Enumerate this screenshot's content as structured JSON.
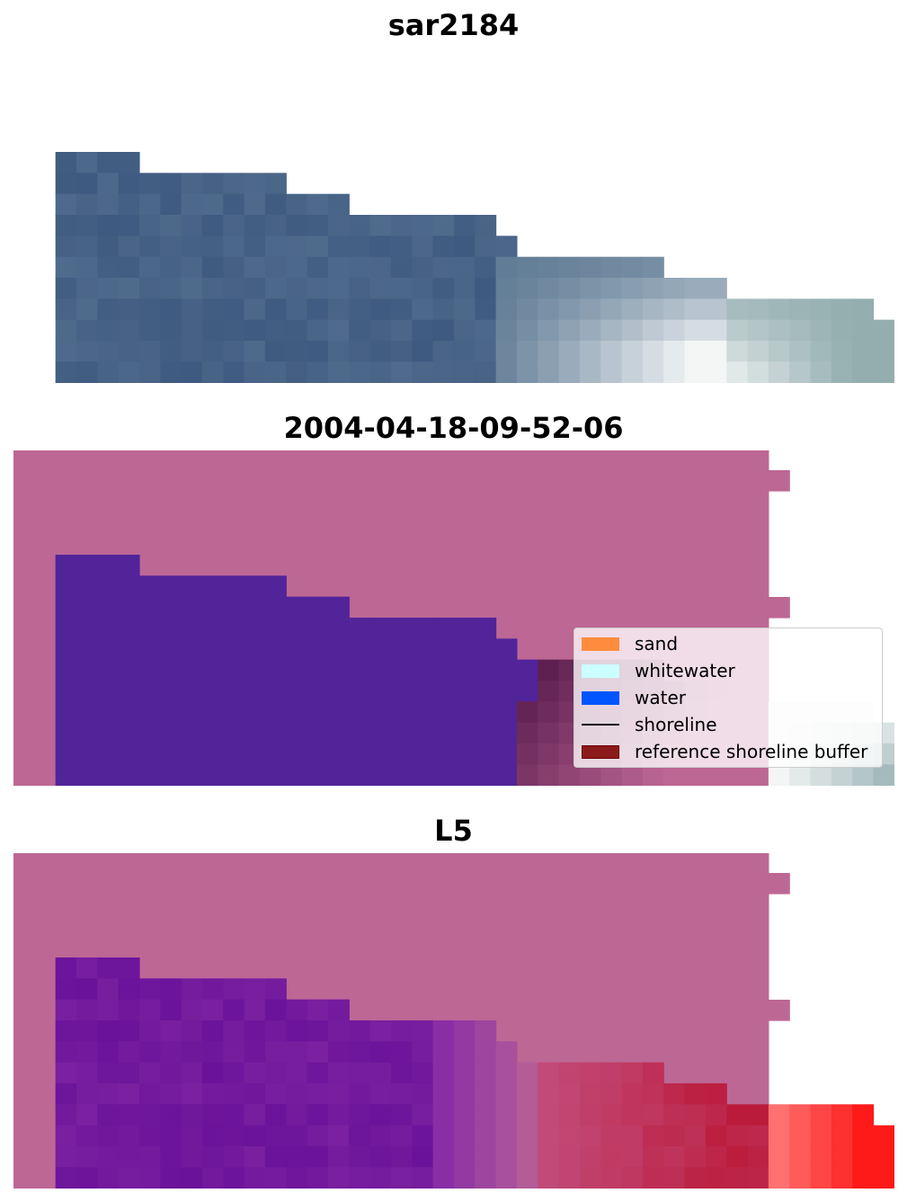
{
  "panels": [
    {
      "title": "sar2184",
      "kind": "rgb_image"
    },
    {
      "title": "2004-04-18-09-52-06",
      "kind": "classified_overlay"
    },
    {
      "title": "L5",
      "kind": "probability_map"
    }
  ],
  "legend": {
    "items": [
      {
        "label": "sand",
        "type": "patch",
        "color": "#ff8c3c"
      },
      {
        "label": "whitewater",
        "type": "patch",
        "color": "#ccffff"
      },
      {
        "label": "water",
        "type": "patch",
        "color": "#0055ff"
      },
      {
        "label": "shoreline",
        "type": "line",
        "color": "#000000"
      },
      {
        "label": "reference shoreline buffer",
        "type": "patch",
        "color": "#8b1a1a"
      }
    ]
  },
  "colors": {
    "buffer_overlay": "#bd6795",
    "water_classified": "#52249a",
    "sand_dark": "#6e2c5c",
    "image_blue": "#3f5a80",
    "image_teal": "#94aeb0",
    "image_white": "#f4f6f6",
    "prob_purple": "#6a129a",
    "prob_red": "#ff1a1a"
  }
}
